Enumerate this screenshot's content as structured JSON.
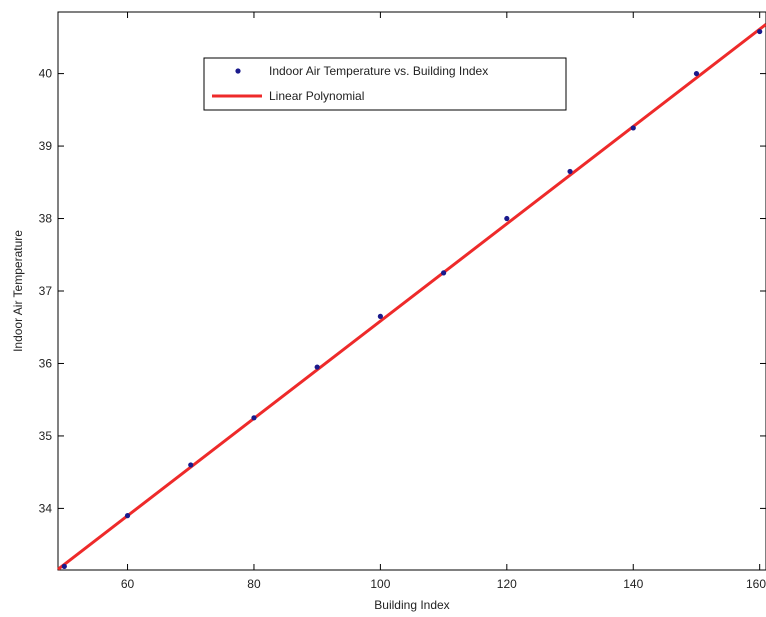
{
  "chart_data": {
    "type": "scatter",
    "xlabel": "Building Index",
    "ylabel": "Indoor Air Temperature",
    "xlim": [
      49,
      161
    ],
    "ylim": [
      33.15,
      40.85
    ],
    "x_ticks": [
      60,
      80,
      100,
      120,
      140,
      160
    ],
    "x_tick_labels": [
      "60",
      "80",
      "100",
      "120",
      "140",
      "160"
    ],
    "y_ticks": [
      34,
      35,
      36,
      37,
      38,
      39,
      40
    ],
    "y_tick_labels": [
      "34",
      "35",
      "36",
      "37",
      "38",
      "39",
      "40"
    ],
    "grid": false,
    "legend_position": "upper-center",
    "series": [
      {
        "name": "Indoor Air Temperature vs. Building Index",
        "kind": "points",
        "color": "#1a1a8c",
        "x": [
          50,
          60,
          70,
          80,
          90,
          100,
          110,
          120,
          130,
          140,
          150,
          160
        ],
        "y": [
          33.2,
          33.9,
          34.6,
          35.25,
          35.95,
          36.65,
          37.25,
          38.0,
          38.65,
          39.25,
          40.0,
          40.58
        ]
      },
      {
        "name": "Linear Polynomial",
        "kind": "line",
        "color": "#ee2a2a",
        "x": [
          49,
          161
        ],
        "y": [
          33.16,
          40.68
        ]
      }
    ]
  }
}
